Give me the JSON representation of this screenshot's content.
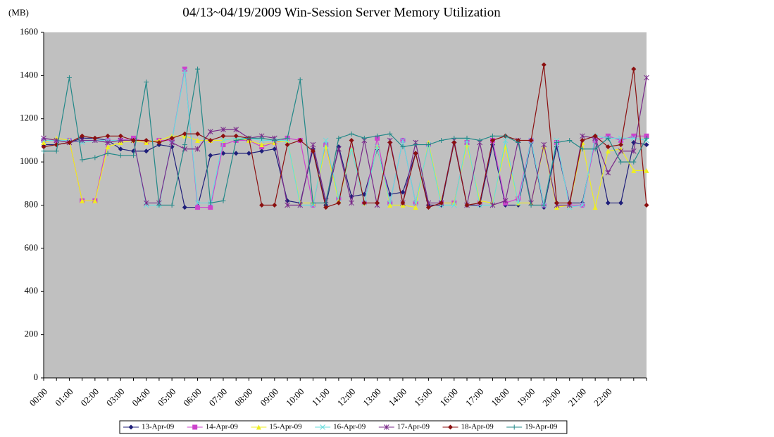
{
  "chart_data": {
    "type": "line",
    "title": "04/13~04/19/2009 Win-Session Server Memory Utilization",
    "y_label": "(MB)",
    "categories": [
      "00:00",
      null,
      "01:00",
      null,
      "02:00",
      null,
      "03:00",
      null,
      "04:00",
      null,
      "05:00",
      null,
      "06:00",
      null,
      "07:00",
      null,
      "08:00",
      null,
      "09:00",
      null,
      "10:00",
      null,
      "11:00",
      null,
      "12:00",
      null,
      "13:00",
      null,
      "14:00",
      null,
      "15:00",
      null,
      "16:00",
      null,
      "17:00",
      null,
      "18:00",
      null,
      "19:00",
      null,
      "20:00",
      null,
      "21:00",
      null,
      "22:00",
      null,
      null,
      null
    ],
    "ylim": [
      0,
      1600
    ],
    "yticks": [
      0,
      200,
      400,
      600,
      800,
      1000,
      1200,
      1400,
      1600
    ],
    "background": "#c0c0c0",
    "legend": "bottom",
    "series": [
      {
        "name": "13-Apr-09",
        "color": "#1f1f7a",
        "marker": "diamond",
        "values": [
          1080,
          1080,
          1090,
          1110,
          1110,
          1100,
          1060,
          1050,
          1050,
          1080,
          1070,
          790,
          790,
          1030,
          1040,
          1040,
          1040,
          1050,
          1060,
          820,
          810,
          1060,
          800,
          1070,
          840,
          850,
          1060,
          850,
          860,
          1040,
          800,
          800,
          1090,
          800,
          800,
          1080,
          800,
          800,
          1090,
          790,
          1070,
          810,
          810,
          1100,
          810,
          810,
          1090,
          1080
        ]
      },
      {
        "name": "14-Apr-09",
        "color": "#cc44cc",
        "marker": "square",
        "values": [
          1100,
          1100,
          1100,
          820,
          820,
          1100,
          1100,
          1110,
          1090,
          1100,
          1100,
          1430,
          790,
          790,
          1080,
          1100,
          1100,
          1070,
          1090,
          1110,
          1100,
          800,
          1080,
          830,
          1060,
          810,
          1110,
          810,
          1100,
          810,
          1080,
          810,
          810,
          1090,
          810,
          1100,
          810,
          830,
          1100,
          800,
          1090,
          800,
          800,
          1100,
          1120,
          1100,
          1120,
          1120
        ]
      },
      {
        "name": "15-Apr-09",
        "color": "#eeee22",
        "marker": "triangle",
        "values": [
          1090,
          1110,
          1100,
          820,
          820,
          1070,
          1090,
          1100,
          1090,
          1100,
          1120,
          1120,
          1100,
          1100,
          1100,
          1110,
          1100,
          1080,
          1090,
          1100,
          810,
          810,
          1070,
          820,
          1060,
          810,
          1070,
          800,
          800,
          790,
          1090,
          810,
          810,
          1080,
          820,
          810,
          1070,
          810,
          810,
          1070,
          790,
          800,
          1090,
          790,
          1050,
          1060,
          960,
          960
        ]
      },
      {
        "name": "16-Apr-09",
        "color": "#66dddd",
        "marker": "x",
        "values": [
          1100,
          1100,
          1100,
          1090,
          1100,
          1100,
          1100,
          1100,
          800,
          800,
          1100,
          1420,
          810,
          810,
          1100,
          1110,
          1110,
          1100,
          1100,
          1100,
          800,
          800,
          1100,
          830,
          1060,
          810,
          1070,
          810,
          1100,
          810,
          1080,
          800,
          800,
          1100,
          800,
          800,
          1100,
          810,
          1100,
          800,
          1100,
          790,
          800,
          1120,
          1110,
          1110,
          1110,
          1100
        ]
      },
      {
        "name": "17-Apr-09",
        "color": "#7a2a8a",
        "marker": "star",
        "values": [
          1110,
          1100,
          1090,
          1100,
          1100,
          1090,
          1100,
          1100,
          810,
          810,
          1090,
          1060,
          1060,
          1140,
          1150,
          1150,
          1110,
          1120,
          1110,
          800,
          800,
          1080,
          820,
          1060,
          810,
          1100,
          800,
          1100,
          810,
          1090,
          810,
          810,
          1100,
          800,
          1090,
          800,
          820,
          1100,
          810,
          1080,
          800,
          800,
          1120,
          1110,
          950,
          1050,
          1050,
          1390
        ]
      },
      {
        "name": "18-Apr-09",
        "color": "#8b1010",
        "marker": "diamond",
        "values": [
          1070,
          1080,
          1090,
          1120,
          1110,
          1120,
          1120,
          1100,
          1100,
          1090,
          1110,
          1130,
          1130,
          1100,
          1120,
          1120,
          1110,
          800,
          800,
          1080,
          1100,
          1050,
          790,
          810,
          1100,
          810,
          810,
          1090,
          810,
          1040,
          790,
          810,
          1090,
          800,
          810,
          1100,
          1120,
          1100,
          1100,
          1450,
          810,
          810,
          1100,
          1120,
          1070,
          1080,
          1430,
          800
        ]
      },
      {
        "name": "19-Apr-09",
        "color": "#228888",
        "marker": "plus",
        "values": [
          1050,
          1050,
          1390,
          1010,
          1020,
          1040,
          1030,
          1030,
          1370,
          800,
          800,
          1080,
          1430,
          810,
          820,
          1100,
          1110,
          1110,
          1100,
          1110,
          1380,
          810,
          810,
          1110,
          1130,
          1110,
          1120,
          1130,
          1070,
          1080,
          1080,
          1100,
          1110,
          1110,
          1100,
          1120,
          1120,
          1090,
          800,
          800,
          1090,
          1100,
          1060,
          1060,
          1110,
          1000,
          1000,
          1110
        ]
      }
    ]
  }
}
